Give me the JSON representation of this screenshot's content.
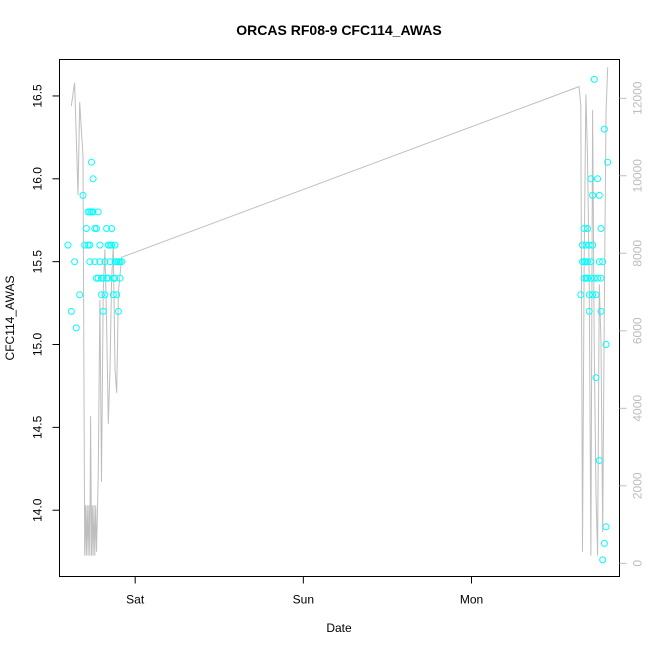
{
  "chart_data": {
    "type": "scatter",
    "title": "ORCAS RF08-9 CFC114_AWAS",
    "xlabel": "Date",
    "ylabel": "CFC114_AWAS",
    "x_tick_labels": [
      "Sat",
      "Sun",
      "Mon"
    ],
    "x_tick_values": [
      1,
      2,
      3
    ],
    "xlim": [
      0.55,
      3.88
    ],
    "y_left": {
      "ticks": [
        14.0,
        14.5,
        15.0,
        15.5,
        16.0,
        16.5
      ],
      "tick_labels": [
        "14.0",
        "14.5",
        "15.0",
        "15.5",
        "16.0",
        "16.5"
      ],
      "lim": [
        13.6,
        16.72
      ]
    },
    "y_right": {
      "ticks": [
        0,
        2000,
        4000,
        6000,
        8000,
        10000,
        12000
      ],
      "tick_labels": [
        "0",
        "2000",
        "4000",
        "6000",
        "8000",
        "10000",
        "12000"
      ],
      "lim": [
        -340,
        13000
      ]
    },
    "grid": false,
    "colors": {
      "points": "#00ffff",
      "line": "#bebebe",
      "right_axis": "#bdbdbd"
    },
    "series": [
      {
        "kind": "points",
        "axis": "left",
        "x": [
          0.6,
          0.62,
          0.64,
          0.65,
          0.67,
          0.69,
          0.7,
          0.71,
          0.72,
          0.72,
          0.73,
          0.73,
          0.73,
          0.74,
          0.74,
          0.75,
          0.75,
          0.76,
          0.76,
          0.77,
          0.77,
          0.78,
          0.78,
          0.79,
          0.79,
          0.8,
          0.8,
          0.81,
          0.81,
          0.82,
          0.82,
          0.83,
          0.83,
          0.84,
          0.84,
          0.85,
          0.85,
          0.86,
          0.86,
          0.87,
          0.87,
          0.88,
          0.88,
          0.88,
          0.89,
          0.89,
          0.9,
          0.9,
          0.91,
          0.91,
          0.92,
          3.65,
          3.66,
          3.66,
          3.67,
          3.67,
          3.67,
          3.68,
          3.68,
          3.68,
          3.69,
          3.69,
          3.69,
          3.7,
          3.7,
          3.7,
          3.71,
          3.71,
          3.71,
          3.72,
          3.72,
          3.72,
          3.73,
          3.73,
          3.74,
          3.74,
          3.75,
          3.75,
          3.76,
          3.76,
          3.76,
          3.77,
          3.77,
          3.77,
          3.78,
          3.78,
          3.79,
          3.79,
          3.8,
          3.8,
          3.81
        ],
        "y": [
          15.6,
          15.2,
          15.5,
          15.1,
          15.3,
          15.9,
          15.6,
          15.7,
          15.8,
          15.6,
          15.5,
          15.8,
          15.6,
          15.8,
          16.1,
          15.8,
          16.0,
          15.7,
          15.5,
          15.7,
          15.4,
          15.8,
          15.4,
          15.6,
          15.5,
          15.3,
          15.4,
          15.2,
          15.4,
          15.5,
          15.3,
          15.4,
          15.7,
          15.6,
          15.4,
          15.6,
          15.5,
          15.7,
          15.6,
          15.3,
          15.4,
          15.4,
          15.6,
          15.5,
          15.5,
          15.3,
          15.5,
          15.2,
          15.4,
          15.5,
          15.5,
          15.3,
          15.5,
          15.6,
          15.4,
          15.5,
          15.7,
          15.4,
          15.6,
          15.5,
          15.7,
          15.4,
          15.5,
          15.3,
          15.6,
          15.2,
          16.0,
          15.5,
          15.4,
          15.9,
          15.6,
          15.3,
          15.4,
          16.6,
          14.8,
          15.3,
          16.0,
          15.4,
          14.3,
          15.9,
          15.5,
          15.2,
          15.4,
          15.7,
          13.7,
          15.5,
          13.8,
          16.3,
          13.9,
          15.0,
          16.1
        ]
      },
      {
        "kind": "line",
        "axis": "right",
        "x": [
          0.62,
          0.64,
          0.65,
          0.66,
          0.67,
          0.69,
          0.7,
          0.705,
          0.71,
          0.715,
          0.72,
          0.725,
          0.73,
          0.735,
          0.74,
          0.745,
          0.75,
          0.755,
          0.76,
          0.765,
          0.77,
          0.78,
          0.79,
          0.8,
          0.81,
          0.82,
          0.83,
          0.84,
          0.85,
          0.86,
          0.87,
          0.88,
          0.89,
          0.9,
          0.92,
          3.64,
          3.65,
          3.66,
          3.67,
          3.68,
          3.69,
          3.7,
          3.71,
          3.72,
          3.73,
          3.74,
          3.75,
          3.76,
          3.77,
          3.78,
          3.79,
          3.8,
          3.81
        ],
        "y": [
          11800,
          12400,
          11000,
          9500,
          11900,
          10500,
          200,
          1500,
          200,
          1500,
          200,
          1500,
          200,
          3800,
          200,
          1500,
          200,
          1500,
          200,
          1500,
          300,
          2200,
          6800,
          2100,
          7000,
          8100,
          6200,
          3600,
          5000,
          7300,
          8200,
          5000,
          4400,
          7000,
          7900,
          12300,
          11800,
          300,
          7900,
          12100,
          10500,
          7300,
          200,
          11700,
          5400,
          1800,
          200,
          7200,
          5700,
          800,
          6800,
          11600,
          12800
        ]
      }
    ]
  }
}
